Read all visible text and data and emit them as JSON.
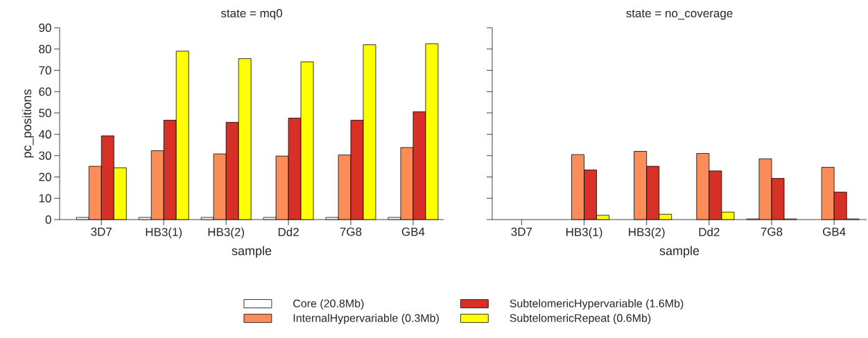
{
  "chart_data": [
    {
      "type": "bar",
      "title": "state = mq0",
      "xlabel": "sample",
      "ylabel": "pc_positions",
      "categories": [
        "3D7",
        "HB3(1)",
        "HB3(2)",
        "Dd2",
        "7G8",
        "GB4"
      ],
      "series": [
        {
          "name": "Core (20.8Mb)",
          "color": "#ffffff",
          "values": [
            1,
            1,
            1,
            1,
            1,
            1
          ]
        },
        {
          "name": "InternalHypervariable (0.3Mb)",
          "color": "#fc8d59",
          "values": [
            25,
            32.3,
            30.8,
            29.8,
            30.3,
            33.8
          ]
        },
        {
          "name": "SubtelomericHypervariable (1.6Mb)",
          "color": "#d73027",
          "values": [
            39.3,
            46.6,
            45.6,
            47.6,
            46.6,
            50.6
          ]
        },
        {
          "name": "SubtelomericRepeat (0.6Mb)",
          "color": "#ffff00",
          "values": [
            24.3,
            79,
            75.5,
            74,
            82,
            82.5
          ]
        }
      ],
      "ylim": [
        0,
        90
      ],
      "yticks": [
        0,
        10,
        20,
        30,
        40,
        50,
        60,
        70,
        80,
        90
      ],
      "legend": "bottom"
    },
    {
      "type": "bar",
      "title": "state = no_coverage",
      "xlabel": "sample",
      "categories": [
        "3D7",
        "HB3(1)",
        "HB3(2)",
        "Dd2",
        "7G8",
        "GB4"
      ],
      "series": [
        {
          "color": "#ffffff",
          "values": [
            null,
            null,
            null,
            null,
            0.3,
            null
          ]
        },
        {
          "color": "#fc8d59",
          "values": [
            null,
            30.5,
            32,
            31,
            28.5,
            24.5
          ]
        },
        {
          "color": "#d73027",
          "values": [
            null,
            23.3,
            25,
            22.8,
            19.3,
            12.9
          ]
        },
        {
          "color": "#ffff00",
          "values": [
            null,
            2,
            2.5,
            3.5,
            0.3,
            0.3
          ]
        }
      ],
      "ylim": [
        0,
        90
      ],
      "yticks": [
        0,
        10,
        20,
        30,
        40,
        50,
        60,
        70,
        80,
        90
      ],
      "tick_labels": "x"
    }
  ]
}
